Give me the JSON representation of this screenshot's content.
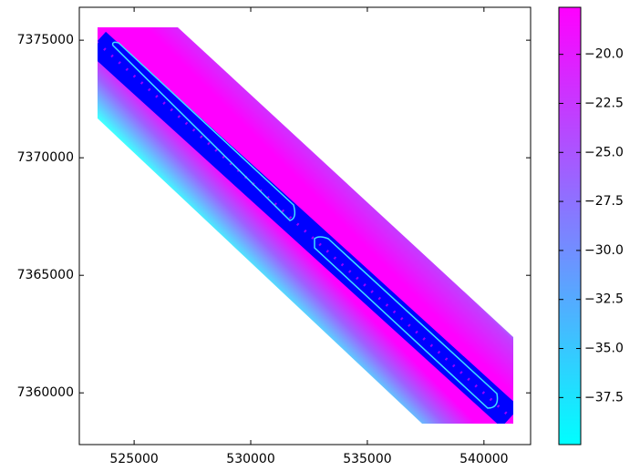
{
  "chart_data": {
    "type": "image",
    "xlim": [
      522650,
      542000
    ],
    "xticks": [
      525000,
      530000,
      535000,
      540000
    ],
    "ylim": [
      7357800,
      7376400
    ],
    "yticks": [
      7360000,
      7365000,
      7370000,
      7375000
    ],
    "colorbar": {
      "clim": [
        -39.9,
        -17.6
      ],
      "colors": [
        "#00ffff",
        "#ff00ff"
      ],
      "ticks": [
        {
          "value": -37.5,
          "label": "−37.5"
        },
        {
          "value": -35,
          "label": "−35.0"
        },
        {
          "value": -32.5,
          "label": "−32.5"
        },
        {
          "value": -30,
          "label": "−30.0"
        },
        {
          "value": -27.5,
          "label": "−27.5"
        },
        {
          "value": -25,
          "label": "−25.0"
        },
        {
          "value": -22.5,
          "label": "−22.5"
        },
        {
          "value": -20,
          "label": "−20.0"
        }
      ]
    }
  }
}
